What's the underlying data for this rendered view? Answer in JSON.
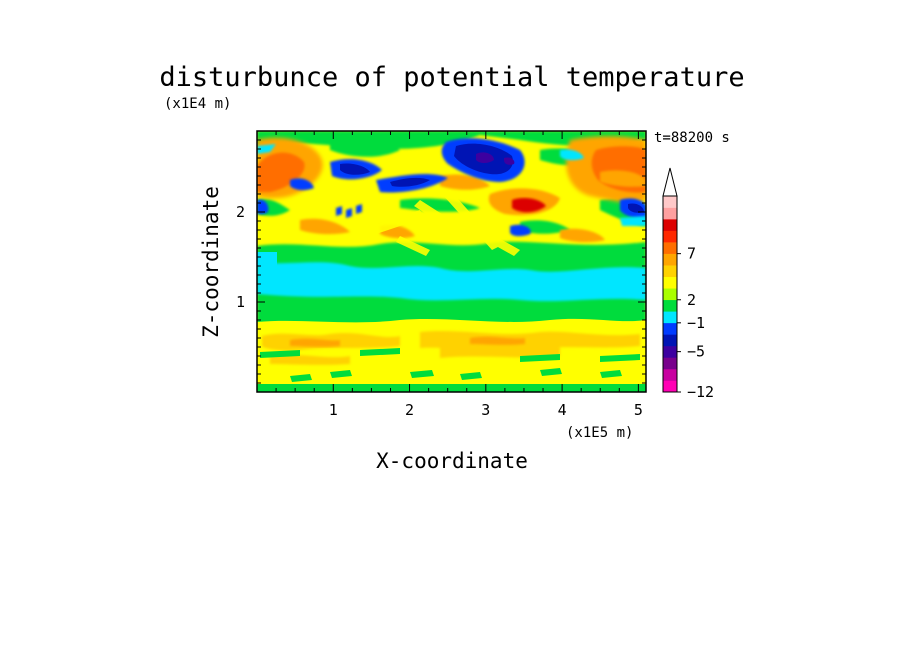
{
  "chart_data": {
    "type": "heatmap",
    "title": "disturbunce of potential temperature",
    "time_label": "t=88200 s",
    "xlabel": "X-coordinate",
    "ylabel": "Z-coordinate",
    "x_unit": "(x1E5 m)",
    "y_unit": "(x1E4 m)",
    "xlim": [
      0,
      5.1
    ],
    "ylim": [
      0,
      2.9
    ],
    "x_ticks": [
      "1",
      "2",
      "3",
      "4",
      "5"
    ],
    "y_ticks": [
      "1",
      "2"
    ],
    "colorbar": {
      "labels": [
        "7",
        "2",
        "−1",
        "−5",
        "−12"
      ],
      "colors": [
        "#ff00b4",
        "#c800a0",
        "#78008c",
        "#3c00a0",
        "#0014b4",
        "#003cff",
        "#00e6ff",
        "#00dc3c",
        "#aaff00",
        "#ffff00",
        "#ffd200",
        "#ffa500",
        "#ff6e00",
        "#ff2800",
        "#dc0000",
        "#ffa0a0",
        "#ffc8c8"
      ],
      "extend": "max"
    },
    "field_description_colors": {
      "surface_layer": "#ffff00",
      "mid_layer": "#00e6ff",
      "green_band": "#00dc3c",
      "warm_anomaly": "#ff6e00",
      "cold_anomaly": "#0014b4"
    }
  }
}
